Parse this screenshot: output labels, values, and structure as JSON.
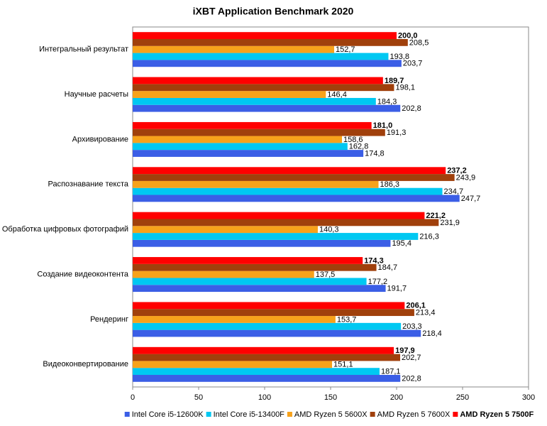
{
  "chart_data": {
    "type": "hbar",
    "title": "iXBT Application Benchmark 2020",
    "categories": [
      "Интегральный результат",
      "Научные расчеты",
      "Архивирование",
      "Распознавание текста",
      "Обработка цифровых фотографий",
      "Создание видеоконтента",
      "Рендеринг",
      "Видеоконвертирование"
    ],
    "series": [
      {
        "name": "Intel Core i5-12600K",
        "color": "#3b5ee6",
        "values": [
          203.7,
          202.8,
          174.8,
          247.7,
          195.4,
          191.7,
          218.4,
          202.8
        ],
        "value_labels": [
          "203,7",
          "202,8",
          "174,8",
          "247,7",
          "195,4",
          "191,7",
          "218,4",
          "202,8"
        ]
      },
      {
        "name": "Intel Core i5-13400F",
        "color": "#00c8f2",
        "values": [
          193.8,
          184.3,
          162.8,
          234.7,
          216.3,
          177.2,
          203.3,
          187.1
        ],
        "value_labels": [
          "193,8",
          "184,3",
          "162,8",
          "234,7",
          "216,3",
          "177,2",
          "203,3",
          "187,1"
        ]
      },
      {
        "name": "AMD Ryzen 5 5600X",
        "color": "#f7a21b",
        "values": [
          152.7,
          146.4,
          158.6,
          186.3,
          140.3,
          137.5,
          153.7,
          151.1
        ],
        "value_labels": [
          "152,7",
          "146,4",
          "158,6",
          "186,3",
          "140,3",
          "137,5",
          "153,7",
          "151,1"
        ]
      },
      {
        "name": "AMD Ryzen 5 7600X",
        "color": "#a0400c",
        "values": [
          208.5,
          198.1,
          191.3,
          243.9,
          231.9,
          184.7,
          213.4,
          202.7
        ],
        "value_labels": [
          "208,5",
          "198,1",
          "191,3",
          "243,9",
          "231,9",
          "184,7",
          "213,4",
          "202,7"
        ]
      },
      {
        "name": "AMD Ryzen 5 7500F",
        "color": "#ff0000",
        "bold": true,
        "values": [
          200.0,
          189.7,
          181.0,
          237.2,
          221.2,
          174.3,
          206.1,
          197.9
        ],
        "value_labels": [
          "200,0",
          "189,7",
          "181,0",
          "237,2",
          "221,2",
          "174,3",
          "206,1",
          "197,9"
        ]
      }
    ],
    "xlim": [
      0,
      300
    ],
    "xticks": [
      0,
      50,
      100,
      150,
      200,
      250,
      300
    ],
    "grid": false,
    "legend": "bottom"
  }
}
